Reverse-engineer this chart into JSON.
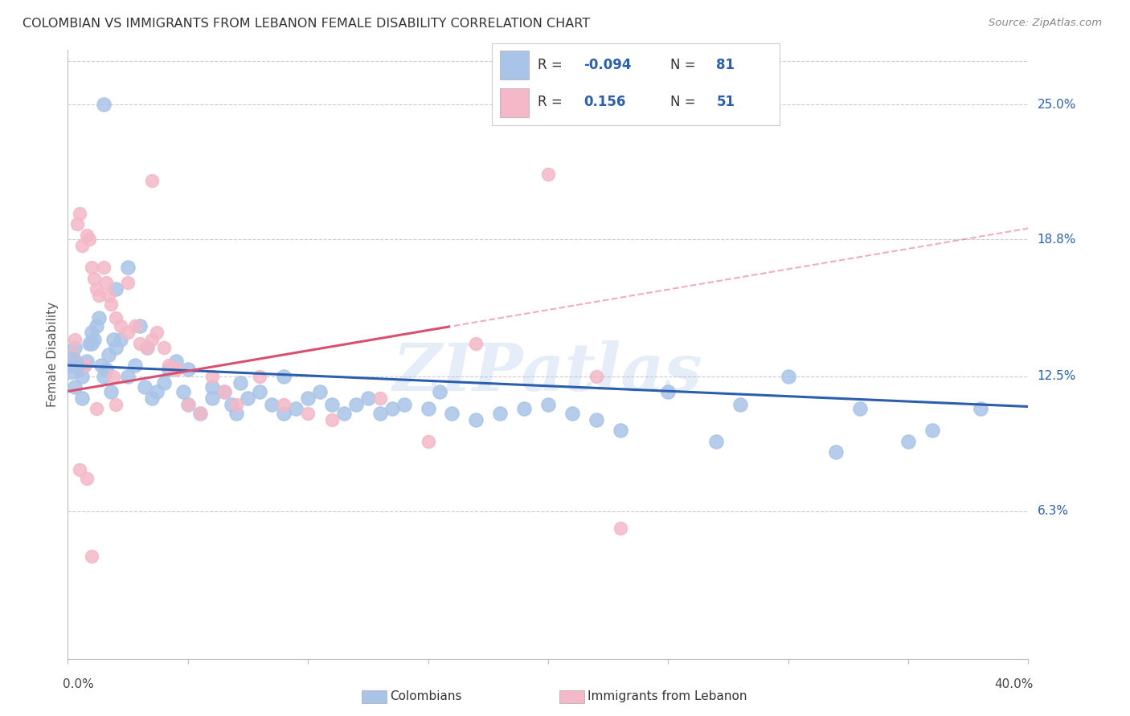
{
  "title": "COLOMBIAN VS IMMIGRANTS FROM LEBANON FEMALE DISABILITY CORRELATION CHART",
  "source": "Source: ZipAtlas.com",
  "ylabel": "Female Disability",
  "ytick_labels": [
    "25.0%",
    "18.8%",
    "12.5%",
    "6.3%"
  ],
  "ytick_values": [
    0.25,
    0.188,
    0.125,
    0.063
  ],
  "xlim": [
    0.0,
    0.4
  ],
  "ylim": [
    -0.005,
    0.275
  ],
  "blue_color": "#aac4e8",
  "pink_color": "#f4b8c8",
  "blue_line_color": "#2b5fad",
  "pink_line_color": "#d94f6e",
  "background_color": "#ffffff",
  "grid_color": "#cccccc",
  "title_color": "#333333",
  "watermark": "ZIPatlas",
  "blue_R": "-0.094",
  "blue_N": "81",
  "pink_R": "0.156",
  "pink_N": "51",
  "blue_points_x": [
    0.002,
    0.003,
    0.004,
    0.005,
    0.006,
    0.007,
    0.008,
    0.009,
    0.01,
    0.011,
    0.012,
    0.013,
    0.014,
    0.015,
    0.016,
    0.017,
    0.018,
    0.019,
    0.02,
    0.02,
    0.022,
    0.025,
    0.025,
    0.028,
    0.03,
    0.032,
    0.033,
    0.035,
    0.037,
    0.04,
    0.042,
    0.045,
    0.048,
    0.05,
    0.05,
    0.055,
    0.06,
    0.06,
    0.065,
    0.068,
    0.07,
    0.072,
    0.075,
    0.08,
    0.085,
    0.09,
    0.09,
    0.095,
    0.1,
    0.105,
    0.11,
    0.115,
    0.12,
    0.125,
    0.13,
    0.135,
    0.14,
    0.15,
    0.155,
    0.16,
    0.17,
    0.18,
    0.19,
    0.2,
    0.21,
    0.22,
    0.23,
    0.25,
    0.27,
    0.28,
    0.3,
    0.32,
    0.33,
    0.35,
    0.36,
    0.38,
    0.001,
    0.003,
    0.006,
    0.01,
    0.015
  ],
  "blue_points_y": [
    0.135,
    0.138,
    0.13,
    0.128,
    0.125,
    0.13,
    0.132,
    0.14,
    0.145,
    0.142,
    0.148,
    0.152,
    0.13,
    0.125,
    0.128,
    0.135,
    0.118,
    0.142,
    0.165,
    0.138,
    0.142,
    0.175,
    0.125,
    0.13,
    0.148,
    0.12,
    0.138,
    0.115,
    0.118,
    0.122,
    0.128,
    0.132,
    0.118,
    0.112,
    0.128,
    0.108,
    0.115,
    0.12,
    0.118,
    0.112,
    0.108,
    0.122,
    0.115,
    0.118,
    0.112,
    0.108,
    0.125,
    0.11,
    0.115,
    0.118,
    0.112,
    0.108,
    0.112,
    0.115,
    0.108,
    0.11,
    0.112,
    0.11,
    0.118,
    0.108,
    0.105,
    0.108,
    0.11,
    0.112,
    0.108,
    0.105,
    0.1,
    0.118,
    0.095,
    0.112,
    0.125,
    0.09,
    0.11,
    0.095,
    0.1,
    0.11,
    0.13,
    0.12,
    0.115,
    0.14,
    0.25
  ],
  "pink_points_x": [
    0.002,
    0.003,
    0.004,
    0.005,
    0.006,
    0.007,
    0.008,
    0.009,
    0.01,
    0.011,
    0.012,
    0.013,
    0.015,
    0.016,
    0.017,
    0.018,
    0.019,
    0.02,
    0.022,
    0.025,
    0.028,
    0.03,
    0.033,
    0.035,
    0.037,
    0.04,
    0.042,
    0.045,
    0.05,
    0.055,
    0.06,
    0.065,
    0.07,
    0.08,
    0.09,
    0.1,
    0.11,
    0.13,
    0.15,
    0.17,
    0.2,
    0.22,
    0.23,
    0.025,
    0.035,
    0.045,
    0.005,
    0.008,
    0.012,
    0.02,
    0.01
  ],
  "pink_points_y": [
    0.135,
    0.142,
    0.195,
    0.2,
    0.185,
    0.13,
    0.19,
    0.188,
    0.175,
    0.17,
    0.165,
    0.162,
    0.175,
    0.168,
    0.162,
    0.158,
    0.125,
    0.152,
    0.148,
    0.145,
    0.148,
    0.14,
    0.138,
    0.142,
    0.145,
    0.138,
    0.13,
    0.128,
    0.112,
    0.108,
    0.125,
    0.118,
    0.112,
    0.125,
    0.112,
    0.108,
    0.105,
    0.115,
    0.095,
    0.14,
    0.218,
    0.125,
    0.055,
    0.168,
    0.215,
    0.128,
    0.082,
    0.078,
    0.11,
    0.112,
    0.042
  ],
  "blue_line_start_y": 0.13,
  "blue_line_end_y": 0.111,
  "pink_line_start_y": 0.118,
  "pink_line_solid_end_x": 0.16,
  "pink_line_solid_end_y": 0.148,
  "pink_line_dash_end_y": 0.185
}
